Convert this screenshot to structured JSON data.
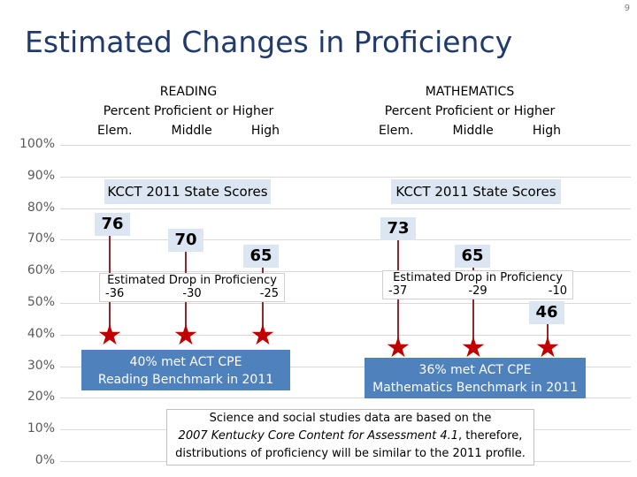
{
  "page_number": "9",
  "title": "Estimated Changes in Proficiency",
  "reading": {
    "heading": "READING",
    "subheading": "Percent Proficient or Higher",
    "levels": [
      "Elem.",
      "Middle",
      "High"
    ],
    "state_scores_label": "KCCT 2011 State Scores",
    "scores": [
      "76",
      "70",
      "65"
    ],
    "drop_title": "Estimated Drop in Proficiency",
    "drops": [
      "-36",
      "-30",
      "-25"
    ],
    "benchmark_line1": "40% met ACT CPE",
    "benchmark_line2": "Reading  Benchmark in 2011"
  },
  "math": {
    "heading": "MATHEMATICS",
    "subheading": "Percent Proficient or Higher",
    "levels": [
      "Elem.",
      "Middle",
      "High"
    ],
    "state_scores_label": "KCCT 2011 State Scores",
    "scores": [
      "73",
      "65",
      "46"
    ],
    "drop_title": "Estimated Drop in Proficiency",
    "drops": [
      "-37",
      "-29",
      "-10"
    ],
    "benchmark_line1": "36% met ACT CPE",
    "benchmark_line2": "Mathematics Benchmark in 2011"
  },
  "note": {
    "line1": "Science and social studies data are based on the",
    "line2_italic": "2007 Kentucky Core Content for Assessment 4.1",
    "line2_rest": ", therefore,",
    "line3": "distributions of proficiency will be similar to the 2011 profile."
  },
  "chart_data": {
    "type": "scatter",
    "title": "Estimated Changes in Proficiency",
    "ylim": [
      0,
      100
    ],
    "yticks": [
      "0%",
      "10%",
      "20%",
      "30%",
      "40%",
      "50%",
      "60%",
      "70%",
      "80%",
      "90%",
      "100%"
    ],
    "categories": [
      "Elem.",
      "Middle",
      "High"
    ],
    "series": [
      {
        "name": "READING",
        "kcct_2011": [
          76,
          70,
          65
        ],
        "drop": [
          -36,
          -30,
          -25
        ],
        "estimated": [
          40,
          40,
          40
        ]
      },
      {
        "name": "MATHEMATICS",
        "kcct_2011": [
          73,
          65,
          46
        ],
        "drop": [
          -37,
          -29,
          -10
        ],
        "estimated": [
          36,
          36,
          36
        ]
      }
    ],
    "colors": {
      "marker": "#c00000",
      "stem": "#8b2a2a",
      "benchmark_box": "#4f81bd",
      "label_box": "#dce6f2",
      "title": "#1f3a6b"
    }
  }
}
